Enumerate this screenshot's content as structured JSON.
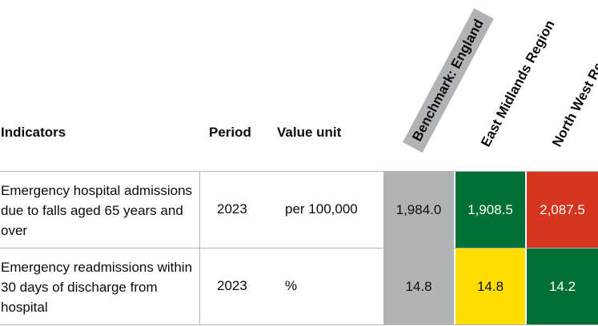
{
  "headers": {
    "indicators": "Indicators",
    "period": "Period",
    "value_unit": "Value unit",
    "areas": [
      "Benchmark: England",
      "East Midlands Region",
      "North West Region"
    ]
  },
  "rows": [
    {
      "indicator": "Emergency hospital admissions due to falls aged 65 years and over",
      "period": "2023",
      "unit": "per 100,000",
      "values": [
        "1,984.0",
        "1,908.5",
        "2,087.5"
      ]
    },
    {
      "indicator": "Emergency readmissions within 30 days of discharge from hospital",
      "period": "2023",
      "unit": "%",
      "values": [
        "14.8",
        "14.8",
        "14.2"
      ]
    }
  ],
  "colors": {
    "benchmark": "#b1b4b6",
    "similar": "#006f35",
    "worse": "#d4351c",
    "higher": "#ffdd00"
  }
}
